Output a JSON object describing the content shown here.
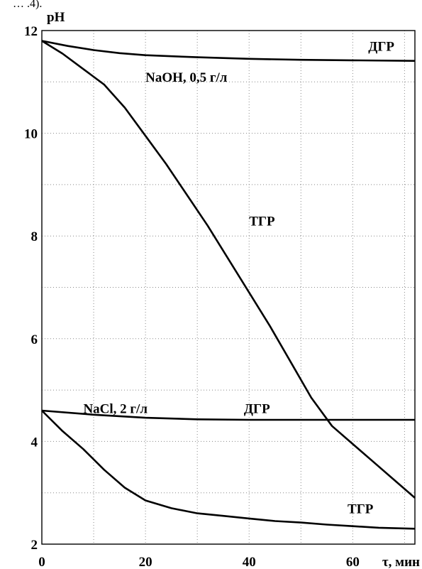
{
  "header_fragment": "… .4).",
  "chart_data": {
    "type": "line",
    "xlabel": "τ, мин",
    "ylabel": "pH",
    "xlim": [
      0,
      72
    ],
    "ylim": [
      2,
      12
    ],
    "xticks": [
      0,
      20,
      40,
      60
    ],
    "yticks": [
      2,
      4,
      6,
      8,
      10,
      12
    ],
    "grid": true,
    "series": [
      {
        "name": "ДГР",
        "x": [
          0,
          5,
          10,
          15,
          20,
          30,
          40,
          50,
          60,
          72
        ],
        "y": [
          11.8,
          11.7,
          11.62,
          11.56,
          11.52,
          11.48,
          11.45,
          11.43,
          11.42,
          11.41
        ]
      },
      {
        "name": "ТГР",
        "x": [
          0,
          4,
          8,
          12,
          16,
          20,
          24,
          28,
          32,
          36,
          40,
          44,
          48,
          52,
          56,
          60,
          64,
          68,
          72
        ],
        "y": [
          11.8,
          11.55,
          11.25,
          10.95,
          10.5,
          9.95,
          9.4,
          8.8,
          8.2,
          7.55,
          6.9,
          6.25,
          5.55,
          4.85,
          4.3,
          3.95,
          3.6,
          3.25,
          2.9
        ]
      },
      {
        "name": "ДГР",
        "x": [
          0,
          10,
          20,
          30,
          40,
          50,
          60,
          72
        ],
        "y": [
          4.6,
          4.52,
          4.46,
          4.43,
          4.42,
          4.42,
          4.42,
          4.42
        ]
      },
      {
        "name": "ТГР",
        "x": [
          0,
          4,
          8,
          12,
          16,
          20,
          25,
          30,
          35,
          40,
          45,
          50,
          55,
          60,
          65,
          72
        ],
        "y": [
          4.6,
          4.2,
          3.85,
          3.45,
          3.1,
          2.85,
          2.7,
          2.6,
          2.55,
          2.5,
          2.45,
          2.42,
          2.38,
          2.35,
          2.32,
          2.3
        ]
      }
    ],
    "annotations": [
      {
        "text": "ДГР",
        "x": 63,
        "y": 11.7
      },
      {
        "text": "NaOH, 0,5 г/л",
        "x": 20,
        "y": 11.1
      },
      {
        "text": "ТГР",
        "x": 40,
        "y": 8.3
      },
      {
        "text": "NaCl,  2 г/л",
        "x": 8,
        "y": 4.65
      },
      {
        "text": "ДГР",
        "x": 39,
        "y": 4.65
      },
      {
        "text": "ТГР",
        "x": 59,
        "y": 2.7
      }
    ]
  }
}
